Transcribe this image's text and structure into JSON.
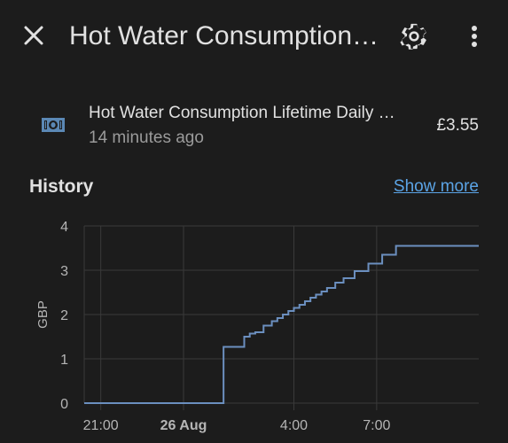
{
  "header": {
    "title": "Hot Water Consumption Lifetime Daily Cost",
    "close_icon": "close-icon",
    "settings_icon": "gear-icon",
    "more_icon": "more-vertical-icon"
  },
  "entity": {
    "name": "Hot Water Consumption Lifetime Daily Cost",
    "updated": "14 minutes ago",
    "value": "£3.55",
    "icon": "cash-icon"
  },
  "history": {
    "title": "History",
    "show_more": "Show more"
  },
  "colors": {
    "background": "#1c1c1c",
    "accent": "#5ba4e6",
    "line": "#6b8fbf",
    "grid": "#3a3a3a",
    "icon": "#5b88b5"
  },
  "chart_data": {
    "type": "line",
    "ylabel": "GBP",
    "xlabel": "",
    "ylim": [
      0,
      4
    ],
    "y_ticks": [
      "0",
      "1",
      "2",
      "3",
      "4"
    ],
    "x_ticks": [
      {
        "label": "21:00",
        "hour": 21,
        "bold": false
      },
      {
        "label": "26 Aug",
        "hour": 24,
        "bold": true
      },
      {
        "label": "4:00",
        "hour": 28,
        "bold": false
      },
      {
        "label": "7:00",
        "hour": 31,
        "bold": false
      }
    ],
    "xlim": [
      20.4,
      34.7
    ],
    "step": true,
    "series": [
      {
        "points": [
          [
            20.4,
            0
          ],
          [
            25.4,
            0
          ],
          [
            25.45,
            1.27
          ],
          [
            26.1,
            1.27
          ],
          [
            26.2,
            1.5
          ],
          [
            26.4,
            1.57
          ],
          [
            26.6,
            1.6
          ],
          [
            26.8,
            1.6
          ],
          [
            26.9,
            1.75
          ],
          [
            27.1,
            1.75
          ],
          [
            27.2,
            1.85
          ],
          [
            27.4,
            1.92
          ],
          [
            27.6,
            2.0
          ],
          [
            27.8,
            2.08
          ],
          [
            28.0,
            2.15
          ],
          [
            28.2,
            2.22
          ],
          [
            28.4,
            2.3
          ],
          [
            28.6,
            2.38
          ],
          [
            28.8,
            2.45
          ],
          [
            29.0,
            2.52
          ],
          [
            29.2,
            2.6
          ],
          [
            29.5,
            2.72
          ],
          [
            29.8,
            2.82
          ],
          [
            30.2,
            2.98
          ],
          [
            30.7,
            3.15
          ],
          [
            31.2,
            3.35
          ],
          [
            31.7,
            3.55
          ],
          [
            34.7,
            3.55
          ]
        ]
      }
    ]
  }
}
